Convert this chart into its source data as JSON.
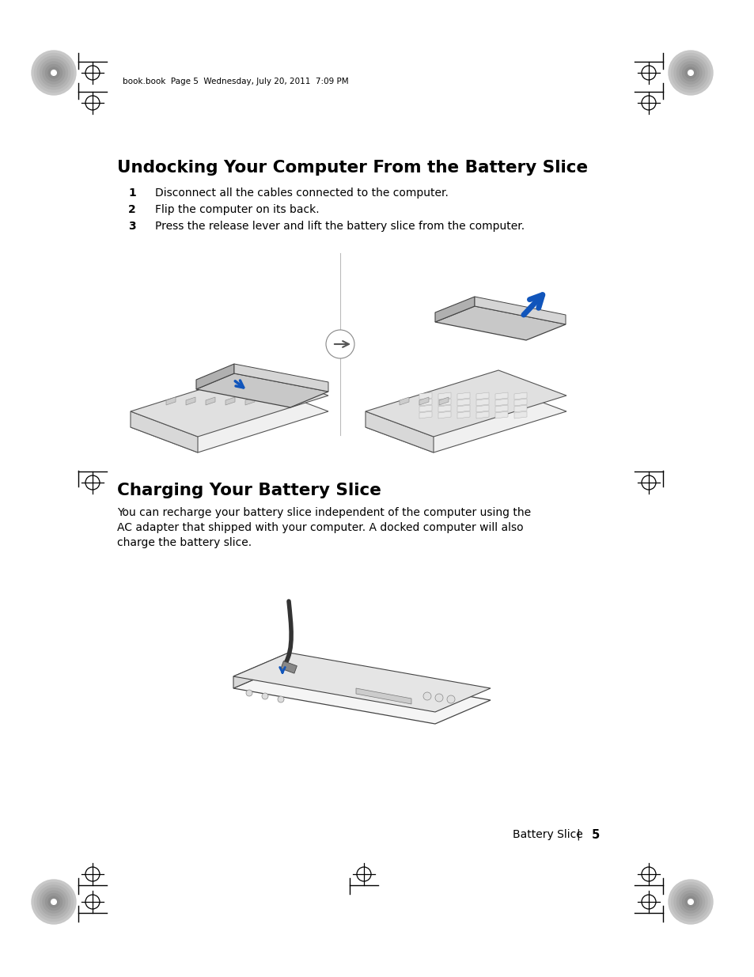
{
  "bg_color": "#ffffff",
  "header_text": "book.book  Page 5  Wednesday, July 20, 2011  7:09 PM",
  "section1_title": "Undocking Your Computer From the Battery Slice",
  "step1_num": "1",
  "step1_text": "Disconnect all the cables connected to the computer.",
  "step2_num": "2",
  "step2_text": "Flip the computer on its back.",
  "step3_num": "3",
  "step3_text": "Press the release lever and lift the battery slice from the computer.",
  "section2_title": "Charging Your Battery Slice",
  "body_text_line1": "You can recharge your battery slice independent of the computer using the",
  "body_text_line2": "AC adapter that shipped with your computer. A docked computer will also",
  "body_text_line3": "charge the battery slice.",
  "footer_text": "Battery Slice",
  "footer_pipe": "|",
  "footer_num": "5"
}
